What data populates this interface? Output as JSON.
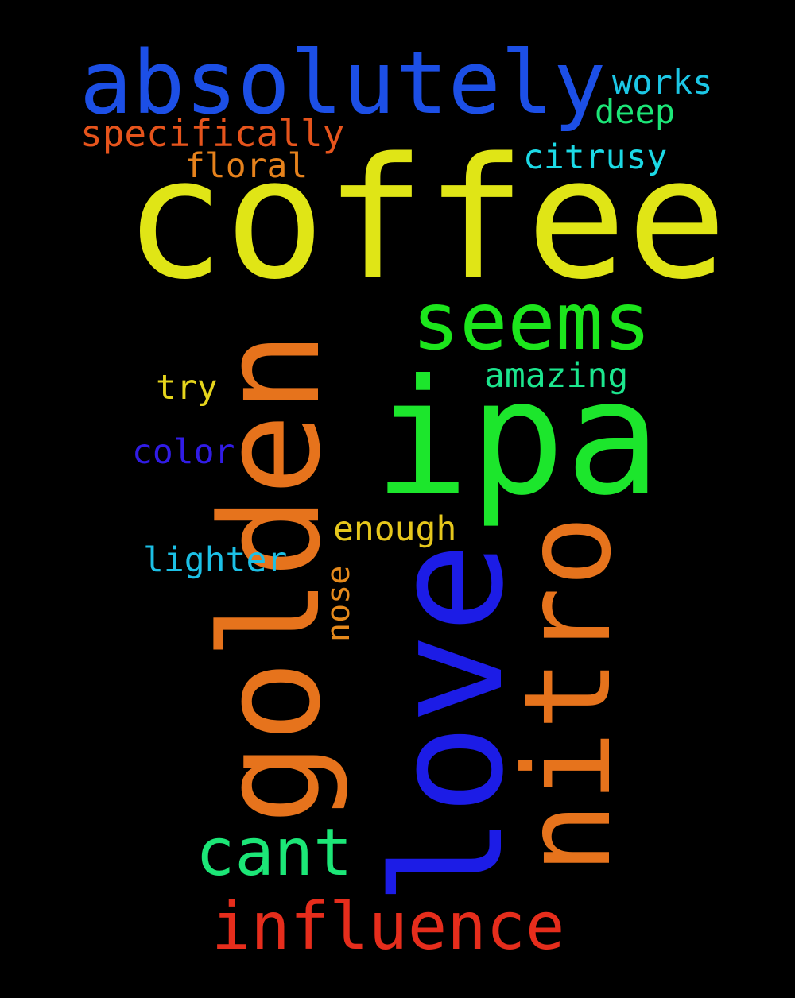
{
  "words": [
    {
      "key": "coffee",
      "text": "coffee",
      "color": "#e0e516"
    },
    {
      "key": "absolutely",
      "text": "absolutely",
      "color": "#1c4fe6"
    },
    {
      "key": "golden",
      "text": "golden",
      "color": "#e6731c"
    },
    {
      "key": "ipa",
      "text": "ipa",
      "color": "#1ce62c"
    },
    {
      "key": "love",
      "text": "love",
      "color": "#1c1ce6"
    },
    {
      "key": "nitro",
      "text": "nitro",
      "color": "#e6731c"
    },
    {
      "key": "seems",
      "text": "seems",
      "color": "#1ce61c"
    },
    {
      "key": "influence",
      "text": "influence",
      "color": "#e62d1c"
    },
    {
      "key": "cant",
      "text": "cant",
      "color": "#1ce677"
    },
    {
      "key": "specifically",
      "text": "specifically",
      "color": "#e6541c"
    },
    {
      "key": "works",
      "text": "works",
      "color": "#1cc7e6"
    },
    {
      "key": "deep",
      "text": "deep",
      "color": "#1ce677"
    },
    {
      "key": "citrusy",
      "text": "citrusy",
      "color": "#1cdae6"
    },
    {
      "key": "floral",
      "text": "floral",
      "color": "#e6821c"
    },
    {
      "key": "amazing",
      "text": "amazing",
      "color": "#1ce68e"
    },
    {
      "key": "try",
      "text": "try",
      "color": "#e6d51c"
    },
    {
      "key": "color",
      "text": "color",
      "color": "#311ce6"
    },
    {
      "key": "enough",
      "text": "enough",
      "color": "#e6c71c"
    },
    {
      "key": "lighter",
      "text": "lighter",
      "color": "#1cc0e6"
    },
    {
      "key": "nose",
      "text": "nose",
      "color": "#e68a1c"
    }
  ]
}
